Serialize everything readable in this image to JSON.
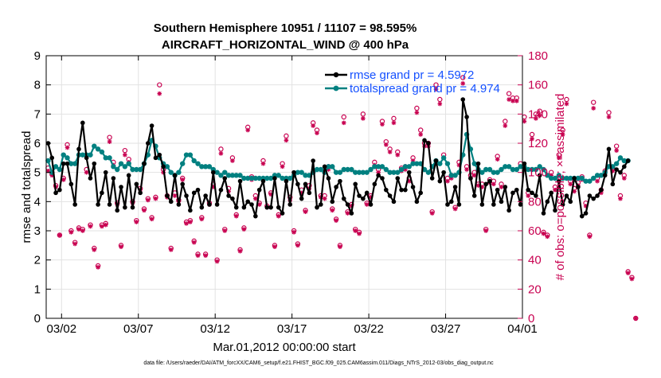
{
  "chart_data": {
    "type": "line",
    "title_line1": "Southern Hemisphere 10951 / 11107 = 98.595%",
    "title_line2": "AIRCRAFT_HORIZONTAL_WIND @ 400 hPa",
    "xlabel": "Mar.01,2012 00:00:00 start",
    "ylabel_left": "rmse and totalspread",
    "ylabel_right": "# of obs: o=possible; ×=assimilated",
    "footnote": "data file: /Users/raeder/DAI/ATM_forcXX/CAM6_setup/f.e21.FHIST_BGC.f09_025.CAM6assim.011/Diags_NTrS_2012-03/obs_diag_output.nc",
    "xlim": [
      0,
      31
    ],
    "ylim_left": [
      0,
      9
    ],
    "ylim_right": [
      0,
      180
    ],
    "x_tick_positions": [
      1,
      6,
      11,
      16,
      21,
      26,
      31
    ],
    "x_tick_labels": [
      "03/02",
      "03/07",
      "03/12",
      "03/17",
      "03/22",
      "03/27",
      "04/01"
    ],
    "y_left_ticks": [
      "0",
      "1",
      "2",
      "3",
      "4",
      "5",
      "6",
      "7",
      "8",
      "9"
    ],
    "y_right_ticks": [
      "0",
      "20",
      "40",
      "60",
      "80",
      "100",
      "120",
      "140",
      "160",
      "180"
    ],
    "grid": true,
    "legend_position": "top-right",
    "colors": {
      "rmse": "#000000",
      "totalspread": "#008080",
      "obs": "#c80050",
      "legend_text": "#1450ff",
      "grid": "#e2e2e2"
    },
    "series": [
      {
        "name": "rmse",
        "legend": "rmse grand pr = 4.5972",
        "x_start": 0.125,
        "x_step": 0.25,
        "values": [
          6.0,
          5.5,
          4.3,
          4.4,
          5.3,
          5.3,
          4.6,
          3.9,
          5.8,
          6.7,
          5.5,
          4.8,
          5.3,
          3.9,
          4.3,
          5.0,
          3.9,
          4.8,
          3.7,
          4.5,
          3.8,
          4.9,
          3.8,
          4.6,
          4.3,
          5.3,
          6.0,
          6.6,
          5.5,
          5.6,
          5.2,
          4.2,
          4.0,
          4.9,
          3.9,
          4.6,
          4.2,
          3.7,
          4.3,
          4.4,
          3.8,
          4.2,
          3.9,
          5.0,
          3.9,
          4.4,
          4.8,
          4.2,
          4.1,
          3.8,
          4.7,
          3.8,
          4.0,
          3.9,
          3.5,
          4.4,
          4.7,
          3.8,
          3.8,
          4.8,
          3.8,
          3.6,
          4.7,
          3.9,
          5.0,
          4.6,
          4.1,
          4.6,
          4.3,
          5.4,
          3.8,
          3.9,
          5.2,
          4.8,
          4.0,
          4.5,
          4.7,
          4.1,
          3.9,
          3.6,
          4.6,
          4.2,
          4.1,
          4.3,
          3.9,
          4.6,
          4.9,
          4.8,
          4.4,
          4.2,
          4.0,
          4.8,
          4.4,
          4.4,
          5.0,
          4.5,
          4.0,
          4.3,
          6.1,
          6.0,
          4.8,
          5.4,
          4.7,
          5.0,
          3.9,
          4.0,
          4.5,
          3.9,
          7.5,
          6.9,
          4.8,
          4.2,
          5.3,
          3.9,
          4.6,
          4.7,
          3.9,
          4.4,
          4.0,
          4.5,
          3.7,
          4.3,
          4.4,
          3.9,
          5.3,
          4.4,
          4.3,
          4.2,
          4.9,
          3.6,
          4.0,
          4.3,
          3.7,
          4.7,
          3.9,
          4.2,
          4.0,
          4.8,
          4.5,
          3.5,
          3.6,
          4.2,
          4.1,
          4.2,
          4.4,
          4.9,
          5.8,
          4.6,
          5.1,
          5.0,
          5.2,
          5.4
        ]
      },
      {
        "name": "totalspread",
        "legend": "totalspread grand pr = 4.974",
        "x_start": 0.125,
        "x_step": 0.25,
        "values": [
          5.4,
          5.0,
          5.2,
          5.1,
          5.6,
          5.5,
          5.3,
          5.3,
          5.6,
          5.6,
          5.6,
          5.6,
          5.9,
          5.8,
          5.7,
          5.5,
          5.5,
          5.2,
          5.1,
          5.3,
          5.2,
          5.3,
          5.1,
          5.1,
          5.1,
          5.3,
          5.6,
          6.1,
          5.9,
          5.5,
          5.3,
          5.2,
          5.0,
          4.9,
          5.0,
          5.3,
          5.6,
          5.6,
          5.4,
          5.3,
          5.2,
          5.2,
          5.2,
          5.1,
          5.0,
          4.9,
          5.0,
          4.9,
          4.9,
          4.9,
          4.9,
          4.8,
          4.8,
          4.8,
          4.8,
          4.8,
          4.8,
          4.8,
          4.8,
          4.9,
          4.9,
          4.8,
          4.8,
          4.8,
          4.9,
          5.0,
          5.0,
          4.9,
          4.9,
          5.0,
          5.1,
          5.1,
          5.0,
          5.2,
          5.2,
          5.0,
          5.0,
          5.1,
          5.1,
          5.1,
          5.0,
          5.0,
          5.0,
          5.0,
          5.1,
          5.2,
          5.2,
          5.2,
          5.1,
          5.0,
          5.0,
          5.0,
          5.1,
          5.2,
          5.2,
          5.3,
          5.3,
          5.3,
          5.1,
          5.0,
          5.2,
          5.4,
          5.3,
          5.5,
          5.3,
          4.9,
          4.9,
          5.0,
          5.6,
          6.3,
          5.8,
          5.3,
          5.1,
          5.0,
          5.1,
          5.1,
          5.0,
          5.0,
          5.1,
          5.2,
          5.2,
          5.1,
          5.1,
          5.2,
          5.2,
          5.1,
          5.1,
          5.1,
          5.2,
          5.1,
          4.9,
          4.8,
          4.8,
          4.9,
          4.8,
          4.8,
          4.8,
          4.8,
          4.8,
          4.8,
          4.7,
          4.7,
          4.8,
          4.9,
          4.9,
          5.0,
          5.2,
          5.2,
          5.3,
          5.5,
          5.4,
          5.4
        ]
      },
      {
        "name": "obs possible",
        "marker": "o",
        "axis": "right",
        "x_start": 0.125,
        "x_step": 0.25,
        "values": [
          103,
          99,
          91,
          57,
          96,
          119,
          60,
          52,
          62,
          61,
          102,
          64,
          48,
          36,
          64,
          65,
          124,
          107,
          79,
          50,
          115,
          109,
          80,
          67,
          89,
          75,
          82,
          69,
          83,
          160,
          102,
          84,
          48,
          86,
          81,
          96,
          66,
          67,
          53,
          44,
          69,
          44,
          79,
          92,
          40,
          116,
          61,
          89,
          110,
          71,
          47,
          62,
          131,
          97,
          84,
          79,
          108,
          77,
          86,
          50,
          71,
          106,
          125,
          83,
          60,
          51,
          88,
          74,
          91,
          134,
          129,
          84,
          84,
          104,
          75,
          68,
          50,
          138,
          73,
          78,
          61,
          59,
          140,
          79,
          84,
          107,
          102,
          135,
          121,
          116,
          137,
          114,
          103,
          104,
          96,
          110,
          144,
          129,
          120,
          120,
          73,
          160,
          150,
          112,
          96,
          98,
          76,
          107,
          165,
          104,
          98,
          100,
          92,
          92,
          61,
          95,
          94,
          111,
          92,
          135,
          154,
          151,
          151,
          106,
          138,
          86,
          126,
          140,
          142,
          59,
          57,
          100,
          90,
          112,
          129,
          150,
          94,
          89,
          93,
          97,
          79,
          57,
          148,
          96,
          88,
          101,
          141,
          103,
          118,
          84,
          98,
          32,
          28,
          0
        ]
      },
      {
        "name": "obs assimilated",
        "marker": "x",
        "axis": "right",
        "x_start": 0.125,
        "x_step": 0.25,
        "values": [
          101,
          98,
          90,
          57,
          95,
          117,
          59,
          51,
          61,
          60,
          100,
          63,
          47,
          35,
          63,
          64,
          121,
          105,
          78,
          49,
          112,
          107,
          79,
          66,
          88,
          74,
          81,
          68,
          82,
          154,
          100,
          83,
          47,
          84,
          80,
          95,
          65,
          66,
          52,
          43,
          68,
          43,
          78,
          90,
          39,
          113,
          60,
          87,
          108,
          70,
          46,
          61,
          129,
          95,
          82,
          78,
          106,
          76,
          85,
          49,
          70,
          104,
          122,
          81,
          59,
          50,
          86,
          73,
          89,
          132,
          127,
          83,
          82,
          102,
          74,
          67,
          49,
          134,
          72,
          77,
          60,
          58,
          137,
          78,
          83,
          105,
          100,
          133,
          119,
          114,
          134,
          112,
          101,
          102,
          94,
          108,
          141,
          126,
          118,
          118,
          72,
          157,
          147,
          110,
          94,
          96,
          75,
          105,
          161,
          102,
          96,
          98,
          91,
          90,
          60,
          93,
          92,
          109,
          90,
          132,
          150,
          149,
          149,
          104,
          135,
          84,
          123,
          137,
          139,
          58,
          56,
          98,
          88,
          110,
          126,
          147,
          92,
          87,
          91,
          95,
          77,
          56,
          144,
          94,
          86,
          99,
          138,
          101,
          115,
          82,
          96,
          31,
          27,
          0
        ]
      }
    ]
  }
}
